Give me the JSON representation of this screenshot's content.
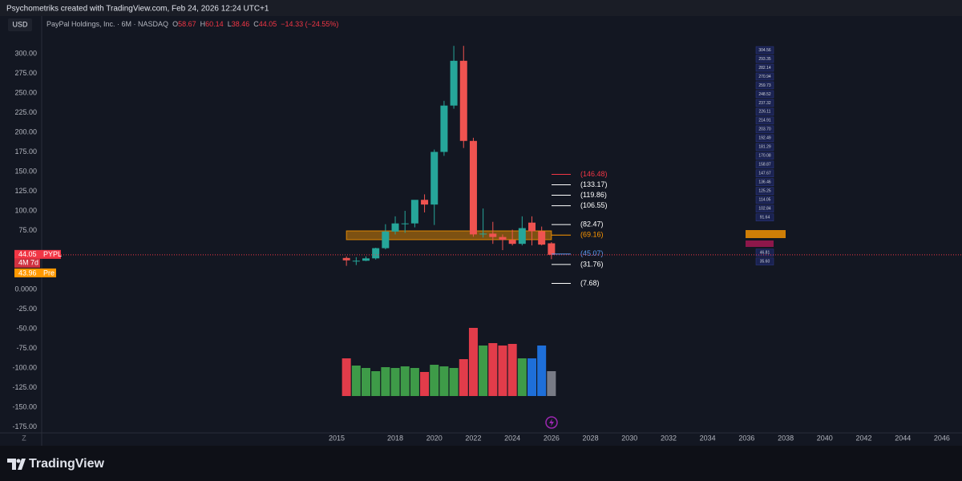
{
  "header": "Psychometriks created with TradingView.com, Feb 24, 2026 12:24 UTC+1",
  "footer_brand": "TradingView",
  "chart_data": {
    "type": "candlestick",
    "currency": "USD",
    "legend": {
      "name": "PayPal Holdings, Inc. · 6M · NASDAQ",
      "o": "O",
      "open": 58.67,
      "h": "H",
      "high": 60.14,
      "l": "L",
      "low": 38.46,
      "c": "C",
      "close": 44.05,
      "change": "−14.33 (−24.55%)",
      "color": "#f23645"
    },
    "x": [
      2015.5,
      2016.0,
      2016.5,
      2017.0,
      2017.5,
      2018.0,
      2018.5,
      2019.0,
      2019.5,
      2020.0,
      2020.5,
      2021.0,
      2021.5,
      2022.0,
      2022.5,
      2023.0,
      2023.5,
      2024.0,
      2024.5,
      2025.0,
      2025.5,
      2026.0
    ],
    "open": [
      40,
      36,
      36.5,
      39.5,
      52.5,
      73.6,
      84,
      84,
      114,
      108,
      175,
      234,
      291,
      189,
      70,
      71,
      66.7,
      63,
      58,
      85,
      74,
      58.67
    ],
    "high": [
      42,
      41,
      42,
      53,
      83,
      93,
      100,
      112,
      121,
      178,
      240,
      310,
      310,
      193,
      103,
      86,
      70,
      76,
      93,
      93,
      80,
      60.14
    ],
    "low": [
      30,
      31,
      36,
      38,
      51,
      70,
      72,
      79,
      98,
      82,
      170,
      230,
      180,
      67,
      66,
      58,
      50,
      56,
      56,
      56,
      56,
      38.46
    ],
    "close": [
      37,
      36.5,
      39.5,
      52.5,
      73.6,
      84,
      84,
      114,
      108,
      175,
      234,
      291,
      189,
      70,
      71,
      66.7,
      63,
      58,
      78,
      74,
      57,
      44.05
    ],
    "up_color": "#26a69a",
    "down_color": "#ef5350",
    "volume": {
      "values": [
        47,
        38,
        35,
        31,
        36,
        35,
        37,
        35,
        30,
        39,
        37,
        35,
        46,
        85,
        63,
        66,
        63,
        65,
        47,
        47,
        63,
        31
      ],
      "colors": [
        "#e23c4a",
        "#3e9b48",
        "#3e9b48",
        "#3e9b48",
        "#3e9b48",
        "#3e9b48",
        "#3e9b48",
        "#3e9b48",
        "#e23c4a",
        "#3e9b48",
        "#3e9b48",
        "#3e9b48",
        "#e23c4a",
        "#e23c4a",
        "#3e9b48",
        "#e23c4a",
        "#e23c4a",
        "#e23c4a",
        "#3e9b48",
        "#1e6fd9",
        "#1e6fd9",
        "#787b86"
      ]
    },
    "xlim": [
      1999.89,
      2047.03
    ],
    "xticks": [
      2015,
      2018,
      2020,
      2022,
      2024,
      2026,
      2028,
      2030,
      2032,
      2034,
      2036,
      2038,
      2040,
      2042,
      2044,
      2046
    ],
    "ylim": [
      -182.65,
      345.92
    ],
    "yticks": [
      {
        "value": 300,
        "label": "300.00"
      },
      {
        "value": 275,
        "label": "275.00"
      },
      {
        "value": 250,
        "label": "250.00"
      },
      {
        "value": 225,
        "label": "225.00"
      },
      {
        "value": 200,
        "label": "200.00"
      },
      {
        "value": 175,
        "label": "175.00"
      },
      {
        "value": 150,
        "label": "150.00"
      },
      {
        "value": 125,
        "label": "125.00"
      },
      {
        "value": 100,
        "label": "100.00"
      },
      {
        "value": 75,
        "label": "75.00"
      },
      {
        "value": 0,
        "label": "0.0000"
      },
      {
        "value": -25,
        "label": "-25.00"
      },
      {
        "value": -50,
        "label": "-50.00"
      },
      {
        "value": -75,
        "label": "-75.00"
      },
      {
        "value": -100,
        "label": "-100.00"
      },
      {
        "value": -125,
        "label": "-125.00"
      },
      {
        "value": -150,
        "label": "-150.00"
      },
      {
        "value": -175,
        "label": "-175.00"
      }
    ],
    "grid": false,
    "zone": {
      "x": [
        2015.5,
        2026.0
      ],
      "y": [
        63.3,
        74.5
      ],
      "color": "#ff9800"
    },
    "levels": [
      {
        "value": 146.48,
        "label": "(146.48)",
        "color": "#f23645"
      },
      {
        "value": 133.17,
        "label": "(133.17)",
        "color": "#ffffff"
      },
      {
        "value": 119.86,
        "label": "(119.86)",
        "color": "#ffffff"
      },
      {
        "value": 106.55,
        "label": "(106.55)",
        "color": "#ffffff"
      },
      {
        "value": 82.47,
        "label": "(82.47)",
        "color": "#ffffff"
      },
      {
        "value": 69.16,
        "label": "(69.16)",
        "color": "#ff9800"
      },
      {
        "value": 45.07,
        "label": "(45.07)",
        "color": "#5b9cf6"
      },
      {
        "value": 31.76,
        "label": "(31.76)",
        "color": "#ffffff"
      },
      {
        "value": 7.68,
        "label": "(7.68)",
        "color": "#ffffff"
      }
    ],
    "ladder": [
      304.56,
      293.35,
      282.14,
      270.94,
      259.73,
      248.52,
      237.32,
      226.11,
      214.91,
      {
        "value": 203.7,
        "label": "203.70"
      },
      192.49,
      181.29,
      170.08,
      158.87,
      147.67,
      136.46,
      125.25,
      114.05,
      102.84,
      91.64,
      46.81,
      {
        "value": 35.6,
        "label": "35.60"
      }
    ],
    "last_price": {
      "value": 44.05,
      "symbol": "PYPL",
      "countdown": "4M 7d",
      "color": "#f23645"
    },
    "premarket": {
      "value": 43.96,
      "label": "Pre",
      "color": "#ff9800"
    }
  }
}
